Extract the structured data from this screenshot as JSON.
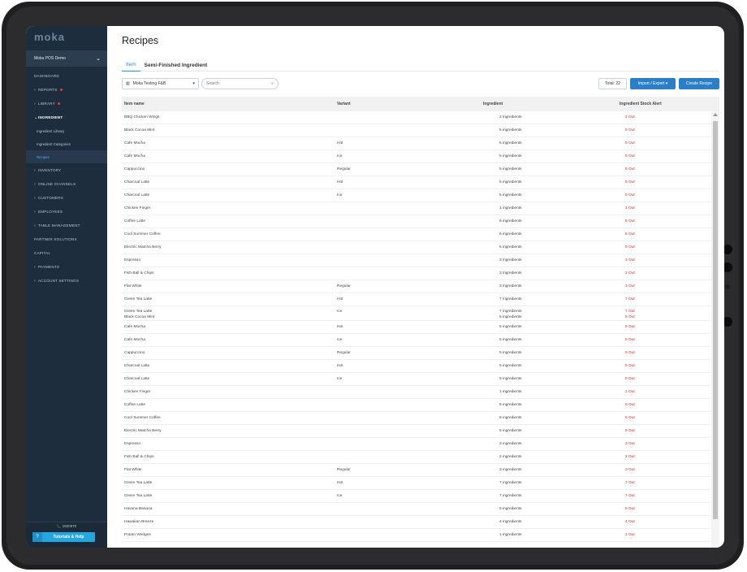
{
  "sidebar": {
    "logo": "moka",
    "outlet": "Moka POS Demo",
    "items": [
      {
        "label": "Dashboard",
        "arrow": "",
        "dot": false
      },
      {
        "label": "Reports",
        "arrow": "›",
        "dot": true
      },
      {
        "label": "Library",
        "arrow": "›",
        "dot": true
      },
      {
        "label": "Ingredient",
        "arrow": "⌄",
        "dot": false
      }
    ],
    "sub_items": [
      "Ingredient Library",
      "Ingredient Categories",
      "Recipes"
    ],
    "items_after": [
      {
        "label": "Inventory",
        "arrow": "›"
      },
      {
        "label": "Online Channels",
        "arrow": "›"
      },
      {
        "label": "Customers",
        "arrow": "›"
      },
      {
        "label": "Employees",
        "arrow": "›"
      },
      {
        "label": "Table Management",
        "arrow": "›"
      },
      {
        "label": "Partner Solutions",
        "arrow": ""
      },
      {
        "label": "Capital",
        "arrow": ""
      },
      {
        "label": "Payments",
        "arrow": "›"
      },
      {
        "label": "Account Settings",
        "arrow": "›"
      }
    ],
    "phone": "📞 1500970",
    "help_label": "Tutorials & Help"
  },
  "page": {
    "title": "Recipes",
    "tabs": [
      "Item",
      "Semi-Finished Ingredient"
    ],
    "outlet_select": "Moka Testing F&B",
    "search_placeholder": "Search",
    "total": "Total: 22",
    "import_label": "Import / Export ▾",
    "create_label": "Create Recipe"
  },
  "table": {
    "headers": [
      "Item name",
      "Variant",
      "Ingredient",
      "Ingredient Stock Alert"
    ],
    "rows": [
      {
        "name": "BBQ Chicken Wings",
        "variant": "",
        "ingredient": "2 ingredients",
        "alert": "2 Out"
      },
      {
        "name": "Black Cocoa Mint",
        "variant": "",
        "ingredient": "5 ingredients",
        "alert": "5 Out"
      },
      {
        "name": "Cafe Mocha",
        "variant": "Hot",
        "ingredient": "5 ingredients",
        "alert": "5 Out"
      },
      {
        "name": "Cafe Mocha",
        "variant": "Ice",
        "ingredient": "5 ingredients",
        "alert": "5 Out"
      },
      {
        "name": "Cappuccino",
        "variant": "Regular",
        "ingredient": "5 ingredients",
        "alert": "5 Out"
      },
      {
        "name": "Charcoal Latte",
        "variant": "Hot",
        "ingredient": "5 ingredients",
        "alert": "5 Out"
      },
      {
        "name": "Charcoal Latte",
        "variant": "Ice",
        "ingredient": "5 ingredients",
        "alert": "5 Out"
      },
      {
        "name": "Chicken Finger",
        "variant": "",
        "ingredient": "1 ingredients",
        "alert": "1 Out"
      },
      {
        "name": "Coffee Latte",
        "variant": "",
        "ingredient": "6 ingredients",
        "alert": "6 Out"
      },
      {
        "name": "Cool Summer Coffee",
        "variant": "",
        "ingredient": "6 ingredients",
        "alert": "6 Out"
      },
      {
        "name": "Electric Matcha Berry",
        "variant": "",
        "ingredient": "5 ingredients",
        "alert": "5 Out"
      },
      {
        "name": "Espresso",
        "variant": "",
        "ingredient": "3 ingredients",
        "alert": "3 Out"
      },
      {
        "name": "Fish Ball & Chips",
        "variant": "",
        "ingredient": "2 ingredients",
        "alert": "2 Out"
      },
      {
        "name": "Flat White",
        "variant": "Regular",
        "ingredient": "3 ingredients",
        "alert": "3 Out"
      },
      {
        "name": "Green Tea Latte",
        "variant": "Hot",
        "ingredient": "7 ingredients",
        "alert": "7 Out"
      },
      {
        "name": "Green Tea Latte",
        "variant": "Ice",
        "ingredient": "7 ingredients",
        "alert": "7 Out",
        "name2": "Black Cocoa Mint",
        "ingredient2": "5 ingredients",
        "alert2": "5 Out"
      },
      {
        "name": "Cafe Mocha",
        "variant": "Hot",
        "ingredient": "5 ingredients",
        "alert": "5 Out"
      },
      {
        "name": "Cafe Mocha",
        "variant": "Ice",
        "ingredient": "5 ingredients",
        "alert": "5 Out"
      },
      {
        "name": "Cappuccino",
        "variant": "Regular",
        "ingredient": "5 ingredients",
        "alert": "5 Out"
      },
      {
        "name": "Charcoal Latte",
        "variant": "Hot",
        "ingredient": "5 ingredients",
        "alert": "5 Out"
      },
      {
        "name": "Charcoal Latte",
        "variant": "Ice",
        "ingredient": "5 ingredients",
        "alert": "5 Out"
      },
      {
        "name": "Chicken Finger",
        "variant": "",
        "ingredient": "1 ingredients",
        "alert": "1 Out"
      },
      {
        "name": "Coffee Latte",
        "variant": "",
        "ingredient": "6 ingredients",
        "alert": "6 Out"
      },
      {
        "name": "Cool Summer Coffee",
        "variant": "",
        "ingredient": "6 ingredients",
        "alert": "6 Out"
      },
      {
        "name": "Electric Matcha Berry",
        "variant": "",
        "ingredient": "5 ingredients",
        "alert": "5 Out"
      },
      {
        "name": "Espresso",
        "variant": "",
        "ingredient": "3 ingredients",
        "alert": "3 Out"
      },
      {
        "name": "Fish Ball & Chips",
        "variant": "",
        "ingredient": "2 ingredients",
        "alert": "2 Out"
      },
      {
        "name": "Flat White",
        "variant": "Regular",
        "ingredient": "3 ingredients",
        "alert": "3 Out"
      },
      {
        "name": "Green Tea Latte",
        "variant": "Hot",
        "ingredient": "7 ingredients",
        "alert": "7 Out"
      },
      {
        "name": "Green Tea Latte",
        "variant": "Ice",
        "ingredient": "7 ingredients",
        "alert": "7 Out"
      },
      {
        "name": "Havana Banana",
        "variant": "",
        "ingredient": "5 ingredients",
        "alert": "5 Out"
      },
      {
        "name": "Hawaiian Breeze",
        "variant": "",
        "ingredient": "4 ingredients",
        "alert": "4 Out"
      },
      {
        "name": "Potato Wedges",
        "variant": "",
        "ingredient": "1 ingredients",
        "alert": "1 Out"
      }
    ]
  },
  "colors": {
    "sidebar": "#1e2d3d",
    "accent": "#2c7ec6",
    "alert": "#e0261c"
  }
}
